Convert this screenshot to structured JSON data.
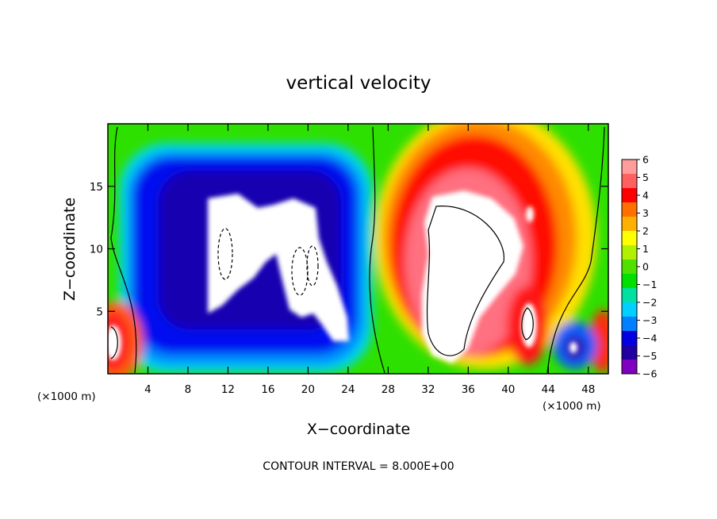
{
  "chart_data": {
    "type": "heatmap",
    "title": "vertical velocity",
    "xlabel": "X−coordinate",
    "ylabel": "Z−coordinate",
    "x_unit_left": "(×1000 m)",
    "x_unit_right": "(×1000 m)",
    "xlim": [
      0,
      50
    ],
    "ylim": [
      0,
      20
    ],
    "x_ticks": [
      "4",
      "8",
      "12",
      "16",
      "20",
      "24",
      "28",
      "32",
      "36",
      "40",
      "44",
      "48"
    ],
    "y_ticks": [
      "5",
      "10",
      "15"
    ],
    "colorbar": {
      "labels": [
        "6",
        "5",
        "4",
        "3",
        "2",
        "1",
        "0",
        "−1",
        "−2",
        "−3",
        "−4",
        "−5",
        "−6"
      ],
      "levels": [
        6,
        5,
        4,
        3,
        2,
        1,
        0,
        -1,
        -2,
        -3,
        -4,
        -5,
        -6
      ],
      "colors": [
        "#ff9c9c",
        "#ff6060",
        "#ff0000",
        "#ff7000",
        "#ffb000",
        "#ffff00",
        "#b0f000",
        "#50e000",
        "#00e000",
        "#00e0a0",
        "#00d0ff",
        "#0080ff",
        "#0000e0",
        "#2000a0",
        "#8000c0"
      ]
    },
    "footnote": "CONTOUR INTERVAL = 8.000E+00",
    "features": [
      {
        "name": "downdraft",
        "x_center": 16,
        "z_center": 10,
        "value_range": [
          -8,
          -3
        ]
      },
      {
        "name": "updraft",
        "x_center": 36,
        "z_center": 9,
        "value_range": [
          3,
          9
        ]
      },
      {
        "name": "updraft-low-left",
        "x_center": 1,
        "z_center": 3,
        "value_range": [
          3,
          6
        ]
      },
      {
        "name": "updraft-low-right",
        "x_center": 42,
        "z_center": 4,
        "value_range": [
          3,
          6
        ]
      }
    ]
  }
}
